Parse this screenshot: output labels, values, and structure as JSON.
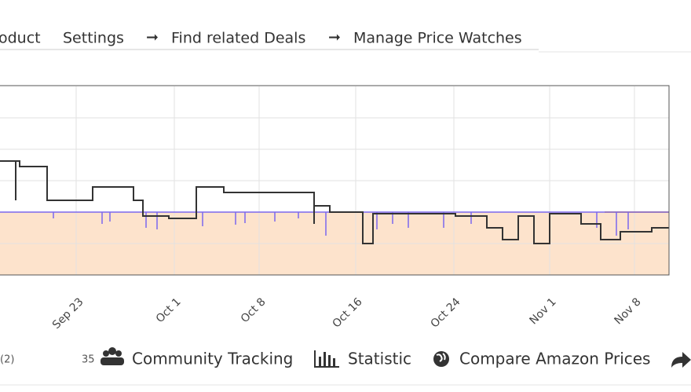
{
  "tabs": [
    "oduct",
    "Settings",
    "Find related Deals",
    "Manage Price Watches"
  ],
  "chart": {
    "x_labels": [
      "Sep 23",
      "Oct 1",
      "Oct 8",
      "Oct 16",
      "Oct 24",
      "Nov 1",
      "Nov 8"
    ]
  },
  "footer": {
    "left": "(2)",
    "count": "35",
    "links": [
      "Community Tracking",
      "Statistic",
      "Compare Amazon Prices"
    ]
  }
}
